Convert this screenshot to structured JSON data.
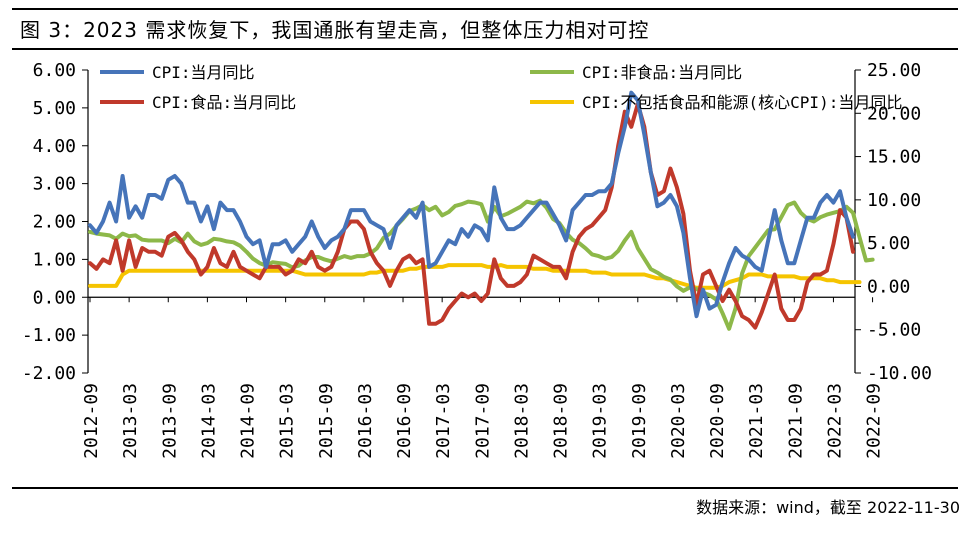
{
  "header": {
    "title": "图 3：2023 需求恢复下，我国通胀有望走高，但整体压力相对可控"
  },
  "footer": {
    "source": "数据来源：wind，截至 2022-11-30"
  },
  "chart_data": {
    "type": "line",
    "title": "",
    "x_ticks": [
      "2012-09",
      "2013-03",
      "2013-09",
      "2014-03",
      "2014-09",
      "2015-03",
      "2015-09",
      "2016-03",
      "2016-09",
      "2017-03",
      "2017-09",
      "2018-03",
      "2018-09",
      "2019-03",
      "2019-09",
      "2020-03",
      "2020-09",
      "2021-03",
      "2021-09",
      "2022-03",
      "2022-09"
    ],
    "y_left": {
      "range": [
        -2,
        6
      ],
      "ticks": [
        "6.00",
        "5.00",
        "4.00",
        "3.00",
        "2.00",
        "1.00",
        "0.00",
        "-1.00",
        "-2.00"
      ]
    },
    "y_right": {
      "range": [
        -10,
        25
      ],
      "ticks": [
        "25.00",
        "20.00",
        "15.00",
        "10.00",
        "5.00",
        "0.00",
        "-5.00",
        "-10.00"
      ]
    },
    "legend_placement": "top, two columns",
    "grid": false,
    "series": [
      {
        "name": "CPI:当月同比",
        "axis": "left",
        "color": "#4674B9",
        "values": [
          1.9,
          1.7,
          2.0,
          2.5,
          2.0,
          3.2,
          2.1,
          2.4,
          2.1,
          2.7,
          2.7,
          2.6,
          3.1,
          3.2,
          3.0,
          2.5,
          2.5,
          2.0,
          2.4,
          1.8,
          2.5,
          2.3,
          2.3,
          2.0,
          1.6,
          1.4,
          1.5,
          0.8,
          1.4,
          1.4,
          1.5,
          1.2,
          1.4,
          1.6,
          2.0,
          1.6,
          1.3,
          1.5,
          1.6,
          1.8,
          2.3,
          2.3,
          2.3,
          2.0,
          1.9,
          1.8,
          1.3,
          1.9,
          2.1,
          2.3,
          2.1,
          2.5,
          0.8,
          0.9,
          1.2,
          1.5,
          1.4,
          1.8,
          1.6,
          1.9,
          1.8,
          1.5,
          2.9,
          2.1,
          1.8,
          1.8,
          1.9,
          2.1,
          2.3,
          2.5,
          2.5,
          2.2,
          1.9,
          1.5,
          2.3,
          2.5,
          2.7,
          2.7,
          2.8,
          2.8,
          3.0,
          3.8,
          4.5,
          5.4,
          5.2,
          4.3,
          3.3,
          2.4,
          2.5,
          2.7,
          2.4,
          1.7,
          0.5,
          -0.5,
          0.2,
          -0.3,
          -0.2,
          0.4,
          0.9,
          1.3,
          1.1,
          1.0,
          0.8,
          0.7,
          1.5,
          2.3,
          1.5,
          0.9,
          0.9,
          1.5,
          2.1,
          2.1,
          2.5,
          2.7,
          2.5,
          2.8,
          2.1,
          1.6
        ]
      },
      {
        "name": "CPI:食品:当月同比",
        "axis": "left",
        "color": "#C0392B",
        "values": [
          0.9,
          0.75,
          1.0,
          0.9,
          1.5,
          0.7,
          1.5,
          0.8,
          1.3,
          1.2,
          1.2,
          1.1,
          1.6,
          1.7,
          1.5,
          1.2,
          1.0,
          0.6,
          0.8,
          1.3,
          0.9,
          0.8,
          1.2,
          0.8,
          0.7,
          0.6,
          0.5,
          0.8,
          0.8,
          0.8,
          0.6,
          0.7,
          1.0,
          0.9,
          1.2,
          0.8,
          0.7,
          0.8,
          1.2,
          1.8,
          2.0,
          2.0,
          1.8,
          1.2,
          0.9,
          0.7,
          0.3,
          0.7,
          1.0,
          1.1,
          0.9,
          1.0,
          -0.7,
          -0.7,
          -0.6,
          -0.3,
          -0.1,
          0.1,
          0.0,
          0.1,
          -0.1,
          0.1,
          1.0,
          0.5,
          0.3,
          0.3,
          0.4,
          0.6,
          1.1,
          1.0,
          0.9,
          0.8,
          0.8,
          0.5,
          1.2,
          1.6,
          1.8,
          1.9,
          2.1,
          2.3,
          2.9,
          4.0,
          4.9,
          4.5,
          5.1,
          4.5,
          3.3,
          2.7,
          2.8,
          3.4,
          2.9,
          2.2,
          0.7,
          -0.2,
          0.6,
          0.7,
          0.3,
          -0.1,
          0.2,
          -0.1,
          -0.5,
          -0.6,
          -0.8,
          -0.4,
          0.1,
          0.6,
          -0.3,
          -0.6,
          -0.6,
          -0.3,
          0.4,
          0.6,
          0.6,
          0.7,
          1.4,
          2.3,
          2.1,
          1.2
        ]
      },
      {
        "name": "CPI:非食品:当月同比",
        "axis": "right",
        "color": "#8DB849",
        "values": [
          6.3,
          6.1,
          6.0,
          5.9,
          5.5,
          6.1,
          5.8,
          5.9,
          5.4,
          5.3,
          5.3,
          5.3,
          5.0,
          5.5,
          5.1,
          6.1,
          5.2,
          4.8,
          5.0,
          5.5,
          5.4,
          5.2,
          5.1,
          4.7,
          4.0,
          3.2,
          2.7,
          2.4,
          2.8,
          2.7,
          2.6,
          2.2,
          2.4,
          3.0,
          3.4,
          3.4,
          3.1,
          2.9,
          3.2,
          3.5,
          3.3,
          3.5,
          3.5,
          3.8,
          4.4,
          5.6,
          6.1,
          7.0,
          7.8,
          8.7,
          9.0,
          9.4,
          8.8,
          9.2,
          8.2,
          8.6,
          9.3,
          9.5,
          9.8,
          9.7,
          9.5,
          7.5,
          9.2,
          8.1,
          8.4,
          8.8,
          9.2,
          9.8,
          9.6,
          9.9,
          9.1,
          7.8,
          7.3,
          6.2,
          5.4,
          5.0,
          4.4,
          3.7,
          3.5,
          3.2,
          3.4,
          4.1,
          5.3,
          6.3,
          4.4,
          3.2,
          2.0,
          1.6,
          1.1,
          0.8,
          0.0,
          -0.5,
          -0.1,
          -0.3,
          -0.7,
          -1.0,
          -1.5,
          -3.1,
          -4.9,
          -2.5,
          1.5,
          3.5,
          4.5,
          5.5,
          6.5,
          6.6,
          8.0,
          9.4,
          9.7,
          8.5,
          7.8,
          7.5,
          8.0,
          8.3,
          8.5,
          8.7,
          9.2,
          8.5,
          5.7,
          3.0,
          3.1
        ]
      },
      {
        "name": "CPI:不包括食品和能源(核心CPI):当月同比",
        "axis": "left",
        "color": "#F5C400",
        "values": [
          0.3,
          0.3,
          0.3,
          0.3,
          0.3,
          0.6,
          0.7,
          0.7,
          0.7,
          0.7,
          0.7,
          0.7,
          0.7,
          0.7,
          0.7,
          0.7,
          0.7,
          0.7,
          0.7,
          0.7,
          0.7,
          0.7,
          0.7,
          0.7,
          0.7,
          0.7,
          0.7,
          0.7,
          0.7,
          0.7,
          0.7,
          0.7,
          0.65,
          0.6,
          0.6,
          0.6,
          0.6,
          0.6,
          0.6,
          0.6,
          0.6,
          0.6,
          0.6,
          0.65,
          0.65,
          0.7,
          0.7,
          0.7,
          0.7,
          0.75,
          0.75,
          0.8,
          0.8,
          0.8,
          0.8,
          0.85,
          0.85,
          0.85,
          0.85,
          0.85,
          0.85,
          0.8,
          0.8,
          0.85,
          0.8,
          0.8,
          0.8,
          0.8,
          0.75,
          0.75,
          0.75,
          0.7,
          0.7,
          0.7,
          0.7,
          0.7,
          0.7,
          0.65,
          0.65,
          0.65,
          0.6,
          0.6,
          0.6,
          0.6,
          0.6,
          0.6,
          0.55,
          0.5,
          0.5,
          0.45,
          0.4,
          0.35,
          0.3,
          0.25,
          0.25,
          0.25,
          0.25,
          0.3,
          0.4,
          0.45,
          0.5,
          0.6,
          0.6,
          0.6,
          0.55,
          0.55,
          0.55,
          0.55,
          0.55,
          0.5,
          0.5,
          0.5,
          0.5,
          0.45,
          0.45,
          0.4,
          0.4,
          0.4,
          0.4
        ]
      }
    ]
  }
}
